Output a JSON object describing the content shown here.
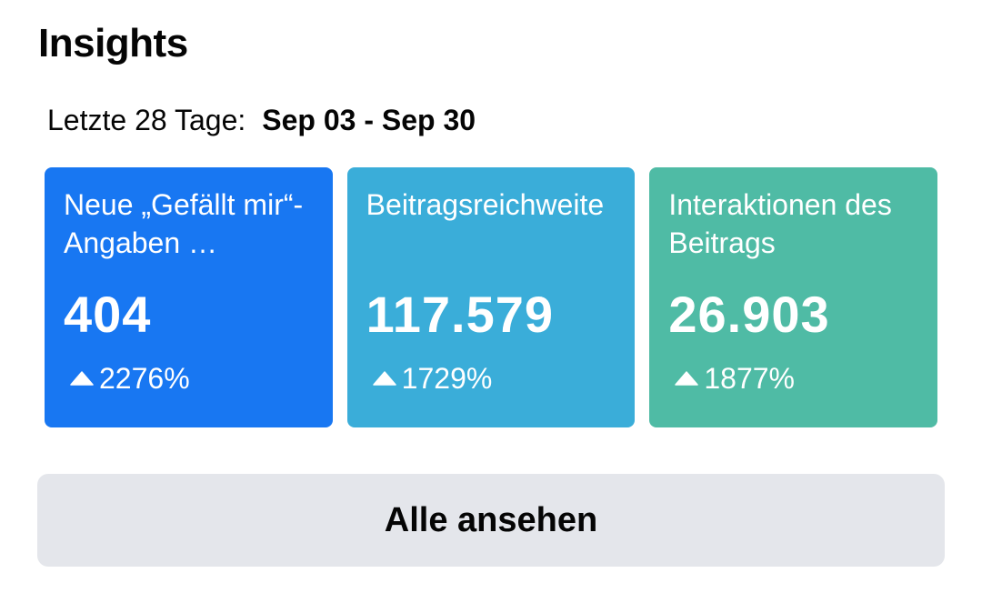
{
  "header": {
    "title": "Insights"
  },
  "date_range": {
    "label": "Letzte 28 Tage:",
    "value": "Sep 03 - Sep 30"
  },
  "cards": [
    {
      "label": "Neue „Gefällt mir“-Angaben …",
      "value": "404",
      "change": "2276%",
      "trend_icon": "triangle-up-icon",
      "color": "#1877f2"
    },
    {
      "label": "Beitragsreichweite",
      "value": "117.579",
      "change": "1729%",
      "trend_icon": "triangle-up-icon",
      "color": "#3aadd9"
    },
    {
      "label": "Interaktionen des Beitrags",
      "value": "26.903",
      "change": "1877%",
      "trend_icon": "triangle-up-icon",
      "color": "#4fbba5"
    }
  ],
  "see_all": {
    "label": "Alle ansehen"
  }
}
